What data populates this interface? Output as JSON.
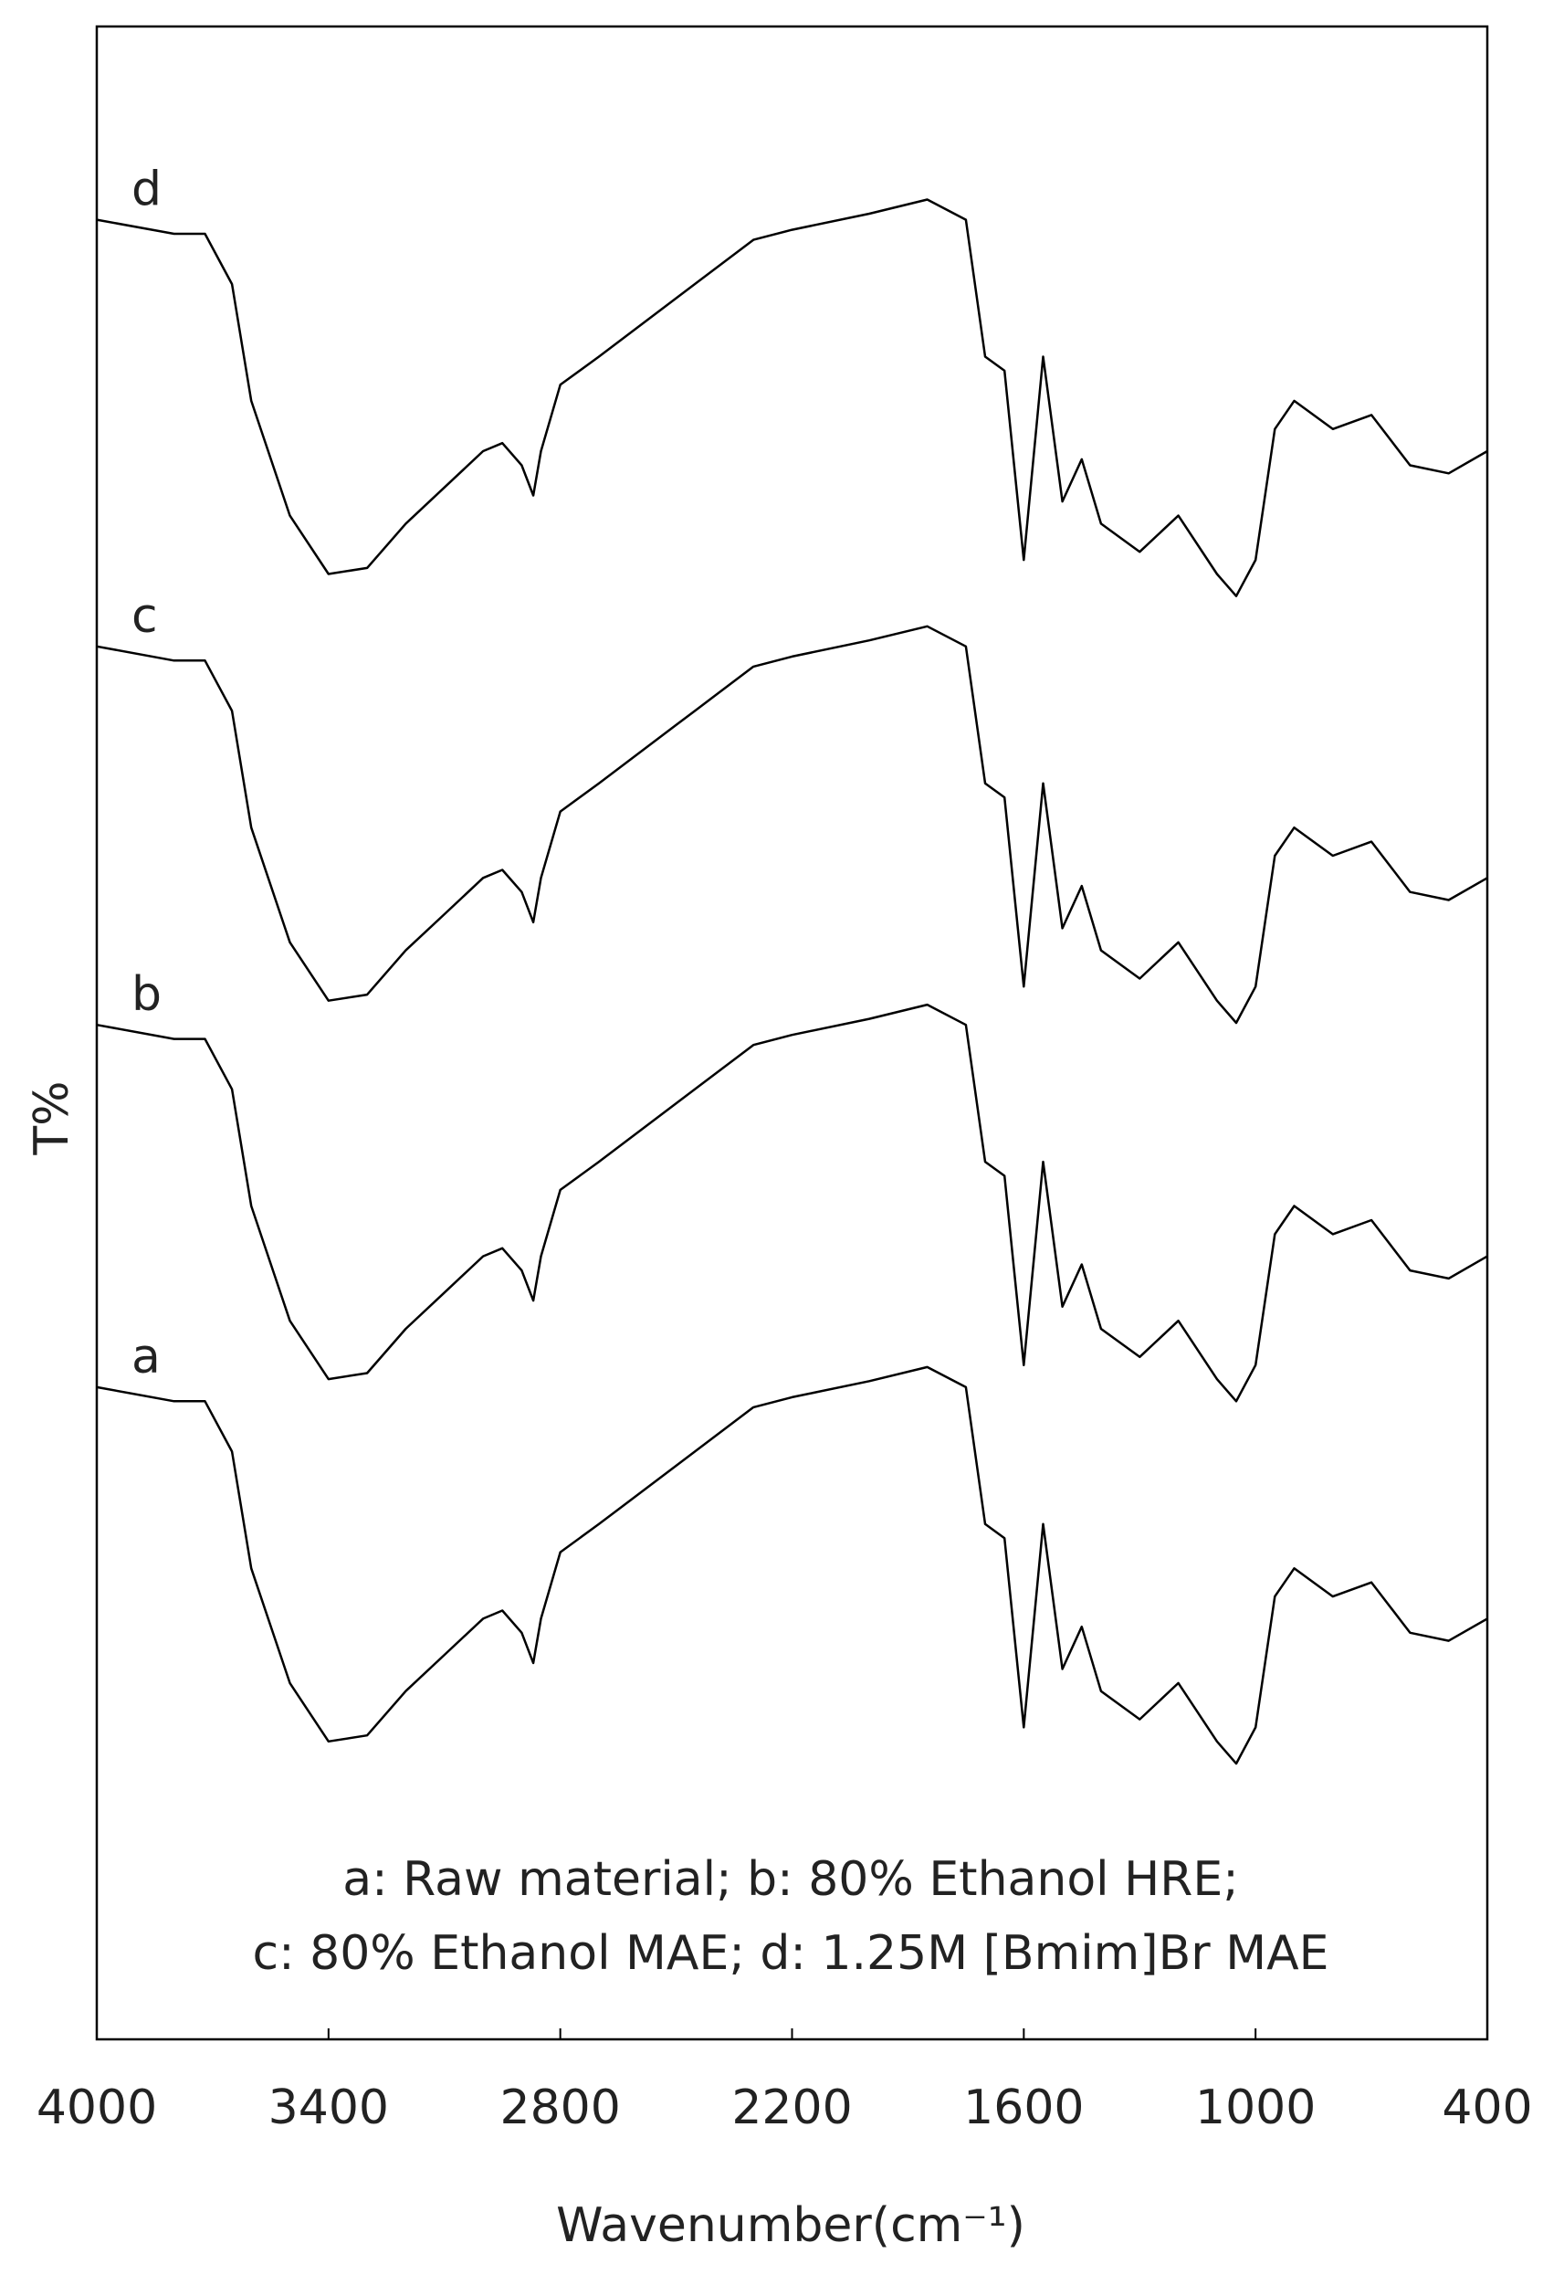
{
  "chart_data": {
    "type": "line",
    "x_label": "Wavenumber(cm⁻¹)",
    "y_label": "T%",
    "annotations": [
      "a: Raw material; b: 80% Ethanol HRE;",
      "c: 80% Ethanol MAE; d: 1.25M [Bmim]Br MAE"
    ],
    "xlim": [
      4000,
      400
    ],
    "xticks": [
      4000,
      3400,
      2800,
      2200,
      1600,
      1000,
      400
    ],
    "ylim": [
      0,
      100
    ],
    "x": [
      4000,
      3800,
      3720,
      3650,
      3600,
      3500,
      3400,
      3300,
      3200,
      3100,
      3000,
      2950,
      2900,
      2870,
      2850,
      2800,
      2700,
      2500,
      2300,
      2200,
      2000,
      1850,
      1750,
      1700,
      1650,
      1600,
      1550,
      1500,
      1450,
      1400,
      1300,
      1200,
      1100,
      1050,
      1000,
      950,
      900,
      800,
      700,
      600,
      500,
      400
    ],
    "series": [
      {
        "name": "a",
        "color": "#000000",
        "values": [
          32.4,
          31.7,
          31.7,
          29.2,
          23.4,
          17.7,
          14.8,
          15.1,
          17.3,
          19.1,
          20.9,
          21.3,
          20.2,
          18.7,
          20.9,
          24.2,
          25.6,
          28.5,
          31.4,
          31.9,
          32.7,
          33.4,
          32.4,
          25.6,
          24.9,
          15.5,
          25.6,
          18.4,
          20.5,
          17.3,
          15.9,
          17.7,
          14.8,
          13.7,
          15.5,
          22.0,
          23.4,
          22.0,
          22.7,
          20.2,
          19.8,
          20.9
        ]
      },
      {
        "name": "b",
        "color": "#000000",
        "values": [
          50.4,
          49.7,
          49.7,
          47.2,
          41.4,
          35.7,
          32.8,
          33.1,
          35.3,
          37.1,
          38.9,
          39.3,
          38.2,
          36.7,
          38.9,
          42.2,
          43.6,
          46.5,
          49.4,
          49.9,
          50.7,
          51.4,
          50.4,
          43.6,
          42.9,
          33.5,
          43.6,
          36.4,
          38.5,
          35.3,
          33.9,
          35.7,
          32.8,
          31.7,
          33.5,
          40.0,
          41.4,
          40.0,
          40.7,
          38.2,
          37.8,
          38.9
        ]
      },
      {
        "name": "c",
        "color": "#000000",
        "values": [
          69.2,
          68.5,
          68.5,
          66.0,
          60.2,
          54.5,
          51.6,
          51.9,
          54.1,
          55.9,
          57.7,
          58.1,
          57.0,
          55.5,
          57.7,
          61.0,
          62.4,
          65.3,
          68.2,
          68.7,
          69.5,
          70.2,
          69.2,
          62.4,
          61.7,
          52.3,
          62.4,
          55.2,
          57.3,
          54.1,
          52.7,
          54.5,
          51.6,
          50.5,
          52.3,
          58.8,
          60.2,
          58.8,
          59.5,
          57.0,
          56.6,
          57.7
        ]
      },
      {
        "name": "d",
        "color": "#000000",
        "values": [
          90.4,
          89.7,
          89.7,
          87.2,
          81.4,
          75.7,
          72.8,
          73.1,
          75.3,
          77.1,
          78.9,
          79.3,
          78.2,
          76.7,
          78.9,
          82.2,
          83.6,
          86.5,
          89.4,
          89.9,
          90.7,
          91.4,
          90.4,
          83.6,
          82.9,
          73.5,
          83.6,
          76.4,
          78.5,
          75.3,
          73.9,
          75.7,
          72.8,
          71.7,
          73.5,
          80.0,
          81.4,
          80.0,
          80.7,
          78.2,
          77.8,
          78.9
        ]
      }
    ]
  }
}
